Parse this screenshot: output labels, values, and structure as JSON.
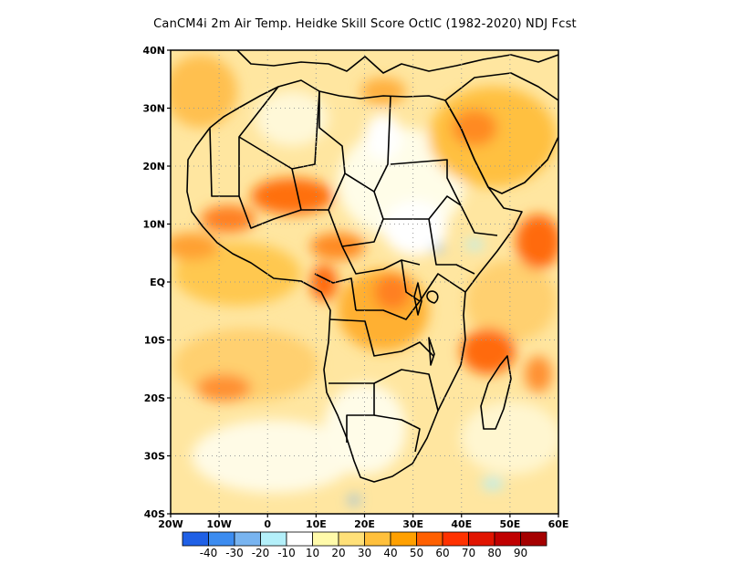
{
  "title": "CanCM4i  2m Air Temp. Heidke Skill Score OctIC (1982-2020) NDJ Fcst",
  "map": {
    "lon_range": [
      -20,
      60
    ],
    "lat_range": [
      -40,
      40
    ],
    "lat_ticks": [
      {
        "value": 40,
        "label": "40N"
      },
      {
        "value": 30,
        "label": "30N"
      },
      {
        "value": 20,
        "label": "20N"
      },
      {
        "value": 10,
        "label": "10N"
      },
      {
        "value": 0,
        "label": "EQ"
      },
      {
        "value": -10,
        "label": "10S"
      },
      {
        "value": -20,
        "label": "20S"
      },
      {
        "value": -30,
        "label": "30S"
      },
      {
        "value": -40,
        "label": "40S"
      }
    ],
    "lon_ticks": [
      {
        "value": -20,
        "label": "20W"
      },
      {
        "value": -10,
        "label": "10W"
      },
      {
        "value": 0,
        "label": "0"
      },
      {
        "value": 10,
        "label": "10E"
      },
      {
        "value": 20,
        "label": "20E"
      },
      {
        "value": 30,
        "label": "30E"
      },
      {
        "value": 40,
        "label": "40E"
      },
      {
        "value": 50,
        "label": "50E"
      },
      {
        "value": 60,
        "label": "60E"
      }
    ],
    "grid": "dotted"
  },
  "colorbar": {
    "colors": [
      "#1f60e6",
      "#3c8cf0",
      "#78b4f0",
      "#b4f0fa",
      "#ffffff",
      "#fffaaa",
      "#ffe078",
      "#ffc03c",
      "#ffa000",
      "#ff6000",
      "#ff3200",
      "#e11400",
      "#c00000",
      "#a50000"
    ],
    "labels": [
      "-40",
      "-30",
      "-20",
      "-10",
      "10",
      "20",
      "30",
      "40",
      "50",
      "60",
      "70",
      "80",
      "90"
    ]
  }
}
